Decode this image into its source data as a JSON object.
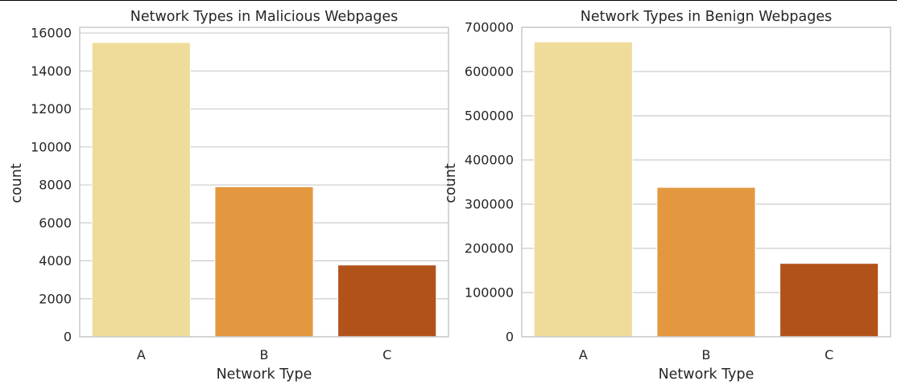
{
  "chart_data": [
    {
      "type": "bar",
      "title": "Network Types in Malicious Webpages",
      "xlabel": "Network Type",
      "ylabel": "count",
      "categories": [
        "A",
        "B",
        "C"
      ],
      "values": [
        15500,
        7900,
        3780
      ],
      "ylim": [
        0,
        16300
      ],
      "yticks": [
        0,
        2000,
        4000,
        6000,
        8000,
        10000,
        12000,
        14000,
        16000
      ],
      "grid": true,
      "colors": [
        "#f0dc9a",
        "#e3983f",
        "#b1521a"
      ]
    },
    {
      "type": "bar",
      "title": "Network Types in Benign Webpages",
      "xlabel": "Network Type",
      "ylabel": "count",
      "categories": [
        "A",
        "B",
        "C"
      ],
      "values": [
        667000,
        338000,
        166000
      ],
      "ylim": [
        0,
        700000
      ],
      "yticks": [
        0,
        100000,
        200000,
        300000,
        400000,
        500000,
        600000,
        700000
      ],
      "grid": true,
      "colors": [
        "#f0dc9a",
        "#e3983f",
        "#b1521a"
      ]
    }
  ]
}
